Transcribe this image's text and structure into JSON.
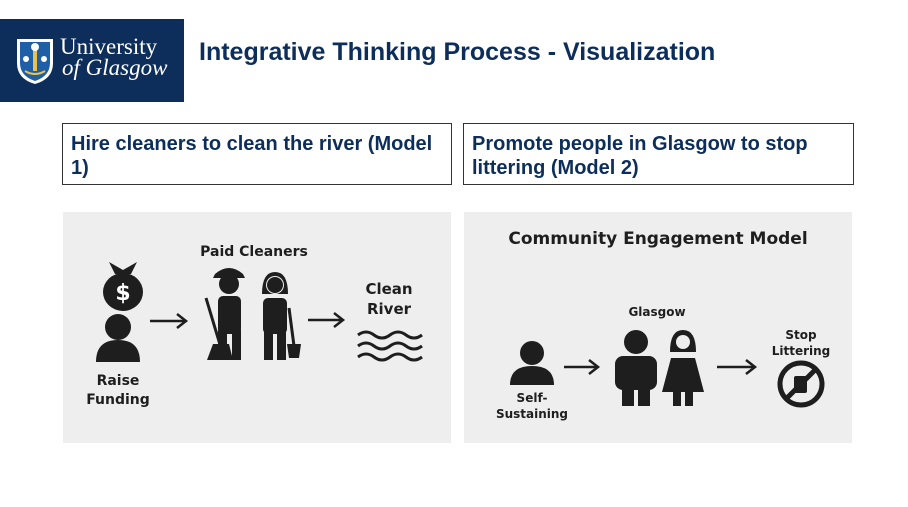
{
  "logo": {
    "line1": "University",
    "line2": "of Glasgow"
  },
  "title": "Integrative Thinking Process - Visualization",
  "model1": {
    "heading": "Hire cleaners to clean the river (Model 1)",
    "diagram": {
      "raise_label_1": "Raise",
      "raise_label_2": "Funding",
      "cleaners_label": "Paid Cleaners",
      "river_label_1": "Clean",
      "river_label_2": "River"
    }
  },
  "model2": {
    "heading": "Promote people in Glasgow to stop littering (Model 2)",
    "diagram": {
      "title": "Community Engagement Model",
      "self_label_1": "Self-",
      "self_label_2": "Sustaining",
      "glasgow_label": "Glasgow",
      "stop_label_1": "Stop",
      "stop_label_2": "Littering"
    }
  },
  "colors": {
    "navy": "#0d2d5a",
    "panel_bg": "#eeeeee",
    "icon": "#1e1e1e"
  }
}
